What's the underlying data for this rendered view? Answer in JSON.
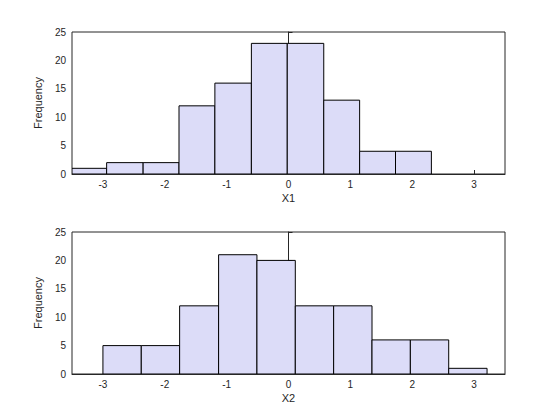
{
  "chart_data": [
    {
      "type": "histogram",
      "xlabel": "X1",
      "ylabel": "Frequency",
      "bins": [
        -3.5,
        -2.94,
        -2.35,
        -1.77,
        -1.19,
        -0.6,
        -0.02,
        0.57,
        1.15,
        1.73,
        2.31
      ],
      "counts": [
        1,
        2,
        2,
        12,
        16,
        23,
        23,
        13,
        4,
        4
      ],
      "color": "#dcdcf8",
      "xlim": [
        -3.5,
        3.5
      ],
      "xticks": [
        -3,
        -2,
        -1,
        0,
        1,
        2,
        3
      ],
      "ylim": [
        0,
        25
      ],
      "yticks": [
        0,
        5,
        10,
        15,
        20,
        25
      ]
    },
    {
      "type": "histogram",
      "xlabel": "X2",
      "ylabel": "Frequency",
      "bins": [
        -3.0,
        -2.38,
        -1.76,
        -1.13,
        -0.51,
        0.11,
        0.73,
        1.35,
        1.97,
        2.59,
        3.21
      ],
      "counts": [
        5,
        5,
        12,
        21,
        20,
        12,
        12,
        6,
        6,
        1
      ],
      "color": "#dcdcf8",
      "xlim": [
        -3.5,
        3.5
      ],
      "xticks": [
        -3,
        -2,
        -1,
        0,
        1,
        2,
        3
      ],
      "ylim": [
        0,
        25
      ],
      "yticks": [
        0,
        5,
        10,
        15,
        20,
        25
      ]
    }
  ]
}
